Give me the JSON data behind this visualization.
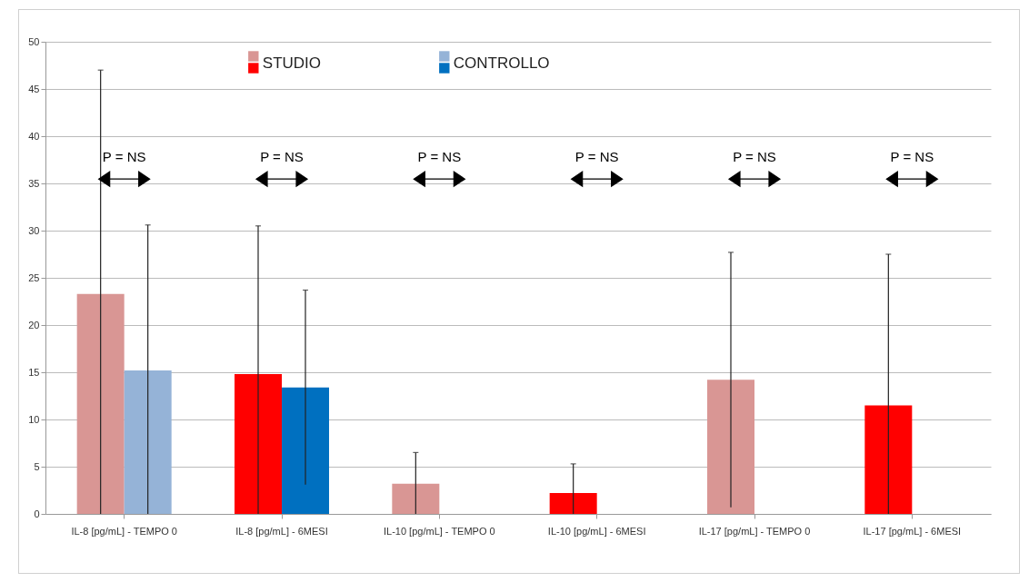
{
  "chart_data": {
    "type": "bar",
    "categories": [
      "IL-8 [pg/mL] - TEMPO 0",
      "IL-8 [pg/mL] - 6MESI",
      "IL-10  [pg/mL] - TEMPO 0",
      "IL-10  [pg/mL] - 6MESI",
      "IL-17  [pg/mL] - TEMPO 0",
      "IL-17  [pg/mL] - 6MESI"
    ],
    "series": [
      {
        "name": "STUDIO",
        "colors": [
          "#d99694",
          "#ff0000",
          "#d99694",
          "#ff0000",
          "#d99694",
          "#ff0000"
        ],
        "values": [
          23.3,
          14.8,
          3.2,
          2.2,
          14.2,
          11.5
        ],
        "errors": [
          [
            0,
            47
          ],
          [
            0,
            30.5
          ],
          [
            0,
            6.5
          ],
          [
            0,
            5.3
          ],
          [
            0.7,
            27.7
          ],
          [
            0,
            27.5
          ]
        ]
      },
      {
        "name": "CONTROLLO",
        "colors": [
          "#95b3d7",
          "#0070c0",
          "#95b3d7",
          "#0070c0",
          "#95b3d7",
          "#0070c0"
        ],
        "values": [
          15.2,
          13.4,
          0,
          0,
          0,
          0
        ],
        "errors": [
          [
            0,
            30.6
          ],
          [
            3.1,
            23.7
          ],
          null,
          null,
          null,
          null
        ]
      }
    ],
    "ylim": [
      0,
      50
    ],
    "yticks": [
      0,
      5,
      10,
      15,
      20,
      25,
      30,
      35,
      40,
      45,
      50
    ],
    "grid": "y",
    "legend": "top",
    "annotations": [
      "P = NS",
      "P = NS",
      "P = NS",
      "P = NS",
      "P = NS",
      "P = NS"
    ]
  }
}
